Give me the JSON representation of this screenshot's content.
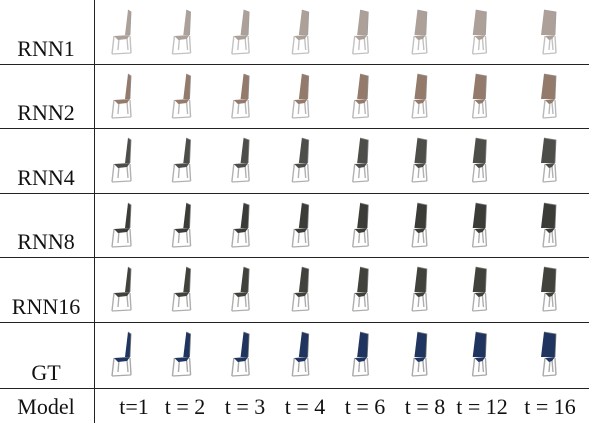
{
  "header": {
    "model_label": "Model",
    "time_labels": [
      "t=1",
      "t = 2",
      "t = 3",
      "t = 4",
      "t = 6",
      "t = 8",
      "t = 12",
      "t = 16"
    ]
  },
  "rows": [
    {
      "label": "RNN1",
      "seat_color": "#8a7a70",
      "fade": 0.55
    },
    {
      "label": "RNN2",
      "seat_color": "#7a5a48",
      "fade": 0.7
    },
    {
      "label": "RNN4",
      "seat_color": "#3a3a36",
      "fade": 0.85
    },
    {
      "label": "RNN8",
      "seat_color": "#2e2e2a",
      "fade": 0.9
    },
    {
      "label": "RNN16",
      "seat_color": "#33352e",
      "fade": 0.9
    },
    {
      "label": "GT",
      "seat_color": "#1f3560",
      "fade": 1.0
    }
  ]
}
